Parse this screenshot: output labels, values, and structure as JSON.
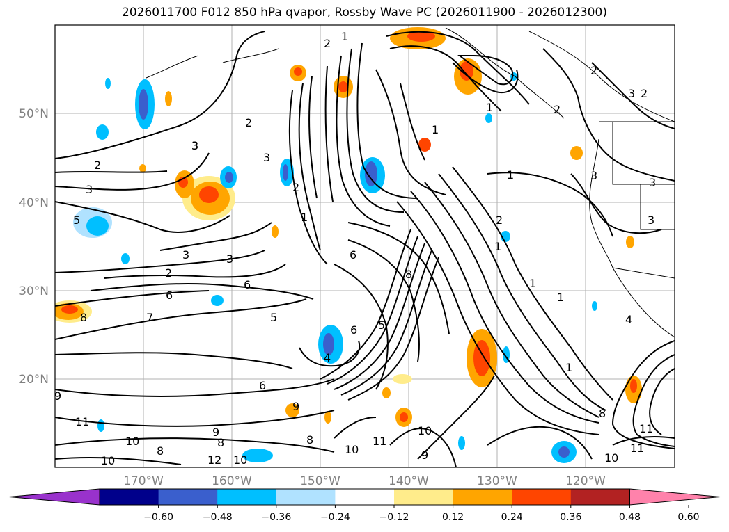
{
  "title": "2026011700 F012 850 hPa qvapor, Rossby Wave PC (2026011900 - 2026012300)",
  "map": {
    "lon_ticks": [
      "170°W",
      "160°W",
      "150°W",
      "140°W",
      "130°W",
      "120°W"
    ],
    "lat_ticks": [
      "50°N",
      "40°N",
      "30°N",
      "20°N"
    ],
    "contour_labels": [
      "1",
      "2",
      "3",
      "4",
      "5",
      "6",
      "7",
      "8",
      "9",
      "10",
      "11",
      "12"
    ]
  },
  "colorbar": {
    "ticks": [
      "−0.60",
      "−0.48",
      "−0.36",
      "−0.24",
      "−0.12",
      "0.12",
      "0.24",
      "0.36",
      "0.48",
      "0.60"
    ],
    "colors": [
      "#9932cc",
      "#00008b",
      "#3a5fcd",
      "#00bfff",
      "#b0e2ff",
      "#ffffff",
      "#ffec8b",
      "#ffa500",
      "#ff4500",
      "#b22222",
      "#ff82ab"
    ]
  }
}
